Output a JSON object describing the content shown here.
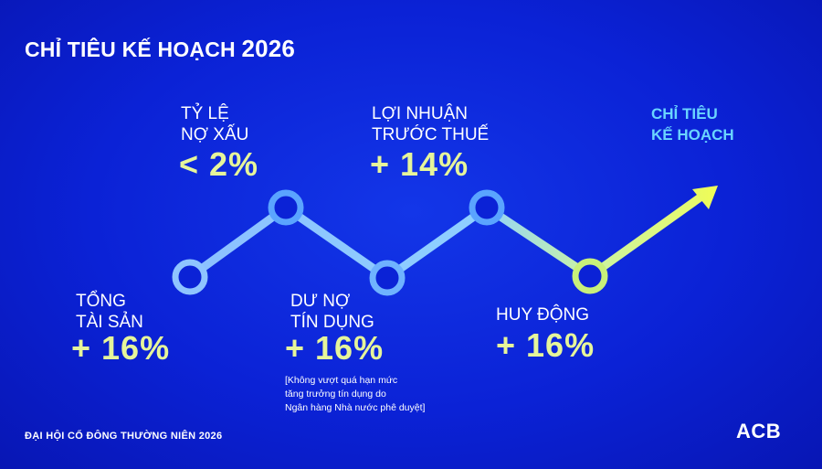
{
  "title": {
    "text": "CHỈ TIÊU KẾ HOẠCH",
    "year": "2026"
  },
  "items": [
    {
      "label": "TỔNG\nTÀI SẢN",
      "value": "+ 16%"
    },
    {
      "label": "TỶ LỆ\nNỢ XẤU",
      "value": "< 2%"
    },
    {
      "label": "DƯ NỢ\nTÍN DỤNG",
      "value": "+ 16%",
      "note": "[Không vượt quá hạn mức\ntăng trưởng tín dụng do\nNgân hàng Nhà nước phê duyệt]"
    },
    {
      "label": "LỢI NHUẬN\nTRƯỚC THUẾ",
      "value": "+ 14%"
    },
    {
      "label": "HUY ĐỘNG",
      "value": "+ 16%"
    }
  ],
  "plan_label": "CHỈ TIÊU\nKẾ HOẠCH",
  "footer": "ĐẠI HỘI CỔ ĐÔNG THƯỜNG NIÊN 2026",
  "logo": "ACB",
  "colors": {
    "background": "#0b22d6",
    "value_text": "#e6f59a",
    "plan_label": "#6ad5ff",
    "line_start": "#7fb8ff",
    "line_end": "#e7fb6a"
  }
}
